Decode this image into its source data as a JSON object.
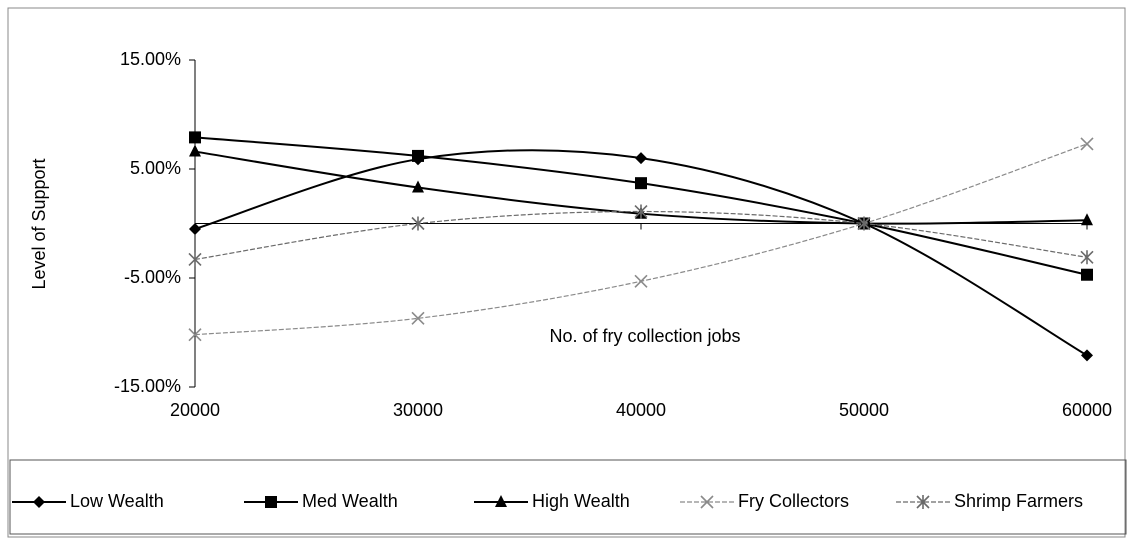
{
  "chart_data": {
    "type": "line",
    "x_label": "No. of fry collection jobs",
    "y_label": "Level of Support",
    "x": [
      20000,
      30000,
      40000,
      50000,
      60000
    ],
    "xlim": [
      20000,
      60000
    ],
    "xticks": [
      20000,
      30000,
      40000,
      50000,
      60000
    ],
    "ylim": [
      -15,
      15
    ],
    "yticks": [
      {
        "value": -15,
        "label": "-15.00%"
      },
      {
        "value": -5,
        "label": "-5.00%"
      },
      {
        "value": 5,
        "label": "5.00%"
      },
      {
        "value": 15,
        "label": "15.00%"
      }
    ],
    "series": [
      {
        "name": "Low Wealth",
        "color": "#000000",
        "marker": "diamond",
        "values": [
          -0.5,
          5.9,
          6.0,
          0,
          -12.1
        ]
      },
      {
        "name": "Med Wealth",
        "color": "#000000",
        "marker": "square",
        "values": [
          7.9,
          6.2,
          3.7,
          0,
          -4.7
        ]
      },
      {
        "name": "High Wealth",
        "color": "#000000",
        "marker": "triangle",
        "values": [
          6.6,
          3.3,
          0.9,
          0,
          0.3
        ]
      },
      {
        "name": "Fry Collectors",
        "color": "#8a8a8a",
        "marker": "x",
        "values": [
          -10.2,
          -8.7,
          -5.3,
          0,
          7.3
        ]
      },
      {
        "name": "Shrimp Farmers",
        "color": "#6a6a6a",
        "marker": "star",
        "values": [
          -3.3,
          0,
          1.1,
          0,
          -3.1
        ]
      }
    ],
    "legend": "bottom"
  }
}
